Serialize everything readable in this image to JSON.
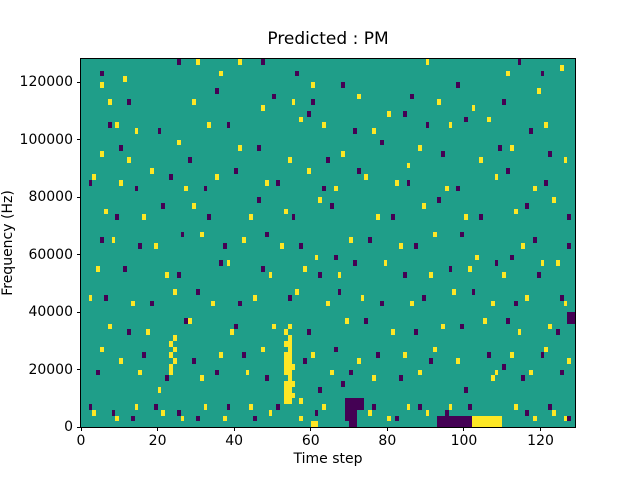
{
  "chart_data": {
    "type": "heatmap",
    "title": "Predicted : PM",
    "xlabel": "Time step",
    "ylabel": "Frequency (Hz)",
    "xlim": [
      0,
      129
    ],
    "ylim": [
      0,
      128000
    ],
    "x_ticks": [
      0,
      20,
      40,
      60,
      80,
      100,
      120
    ],
    "y_ticks": [
      0,
      20000,
      40000,
      60000,
      80000,
      100000,
      120000
    ],
    "cell_size": {
      "t": 1,
      "f": 2000
    },
    "grid": "off",
    "legend": "none",
    "colors": {
      "background": "#1f9e89",
      "high": "#fde725",
      "low": "#440154",
      "spine": "#000000",
      "figure_background": "#ffffff"
    },
    "high_cells": [
      [
        30,
        126000
      ],
      [
        41,
        126000
      ],
      [
        90,
        126000
      ],
      [
        125,
        124000
      ],
      [
        36,
        122000
      ],
      [
        111,
        122000
      ],
      [
        5,
        118000
      ],
      [
        60,
        118000
      ],
      [
        11,
        120000
      ],
      [
        72,
        114000
      ],
      [
        29,
        112000
      ],
      [
        55,
        112000
      ],
      [
        93,
        112000
      ],
      [
        119,
        116000
      ],
      [
        102,
        110000
      ],
      [
        47,
        110000
      ],
      [
        7,
        112000
      ],
      [
        9,
        104000
      ],
      [
        14,
        102000
      ],
      [
        33,
        104000
      ],
      [
        57,
        106000
      ],
      [
        63,
        104000
      ],
      [
        76,
        102000
      ],
      [
        96,
        104000
      ],
      [
        106,
        106000
      ],
      [
        121,
        104000
      ],
      [
        80,
        108000
      ],
      [
        25,
        98000
      ],
      [
        5,
        94000
      ],
      [
        12,
        92000
      ],
      [
        41,
        96000
      ],
      [
        54,
        92000
      ],
      [
        68,
        94000
      ],
      [
        88,
        96000
      ],
      [
        104,
        92000
      ],
      [
        112,
        96000
      ],
      [
        126,
        92000
      ],
      [
        85,
        90000
      ],
      [
        3,
        86000
      ],
      [
        10,
        84000
      ],
      [
        18,
        88000
      ],
      [
        27,
        82000
      ],
      [
        35,
        86000
      ],
      [
        48,
        84000
      ],
      [
        59,
        88000
      ],
      [
        66,
        82000
      ],
      [
        74,
        86000
      ],
      [
        82,
        84000
      ],
      [
        95,
        82000
      ],
      [
        108,
        86000
      ],
      [
        118,
        82000
      ],
      [
        6,
        74000
      ],
      [
        16,
        72000
      ],
      [
        29,
        76000
      ],
      [
        44,
        72000
      ],
      [
        53,
        74000
      ],
      [
        62,
        78000
      ],
      [
        77,
        72000
      ],
      [
        89,
        76000
      ],
      [
        100,
        72000
      ],
      [
        113,
        74000
      ],
      [
        123,
        78000
      ],
      [
        8,
        64000
      ],
      [
        19,
        62000
      ],
      [
        31,
        66000
      ],
      [
        42,
        64000
      ],
      [
        52,
        62000
      ],
      [
        61,
        58000
      ],
      [
        70,
        64000
      ],
      [
        83,
        62000
      ],
      [
        92,
        66000
      ],
      [
        103,
        58000
      ],
      [
        115,
        62000
      ],
      [
        124,
        56000
      ],
      [
        4,
        54000
      ],
      [
        22,
        52000
      ],
      [
        38,
        56000
      ],
      [
        49,
        52000
      ],
      [
        58,
        54000
      ],
      [
        67,
        52000
      ],
      [
        79,
        56000
      ],
      [
        91,
        52000
      ],
      [
        101,
        54000
      ],
      [
        110,
        52000
      ],
      [
        120,
        56000
      ],
      [
        2,
        44000
      ],
      [
        13,
        42000
      ],
      [
        24,
        46000
      ],
      [
        34,
        42000
      ],
      [
        45,
        44000
      ],
      [
        56,
        46000
      ],
      [
        64,
        42000
      ],
      [
        73,
        44000
      ],
      [
        86,
        42000
      ],
      [
        97,
        46000
      ],
      [
        107,
        42000
      ],
      [
        116,
        44000
      ],
      [
        126,
        42000
      ],
      [
        7,
        34000
      ],
      [
        17,
        32000
      ],
      [
        28,
        36000
      ],
      [
        39,
        32000
      ],
      [
        50,
        34000
      ],
      [
        69,
        36000
      ],
      [
        81,
        32000
      ],
      [
        94,
        34000
      ],
      [
        105,
        36000
      ],
      [
        114,
        32000
      ],
      [
        122,
        34000
      ],
      [
        23,
        18000
      ],
      [
        23,
        20000
      ],
      [
        24,
        22000
      ],
      [
        23,
        24000
      ],
      [
        24,
        26000
      ],
      [
        23,
        28000
      ],
      [
        24,
        30000
      ],
      [
        53,
        8000,
        2,
        1
      ],
      [
        53,
        10000,
        3,
        1
      ],
      [
        53,
        12000,
        2,
        1
      ],
      [
        53,
        14000,
        3,
        1
      ],
      [
        54,
        16000
      ],
      [
        53,
        18000,
        2,
        1
      ],
      [
        53,
        20000,
        3,
        1
      ],
      [
        53,
        22000,
        2,
        1
      ],
      [
        53,
        24000,
        2,
        1
      ],
      [
        54,
        26000
      ],
      [
        53,
        28000,
        2,
        1
      ],
      [
        54,
        30000
      ],
      [
        53,
        32000
      ],
      [
        54,
        34000
      ],
      [
        5,
        26000
      ],
      [
        10,
        22000
      ],
      [
        15,
        18000
      ],
      [
        20,
        12000
      ],
      [
        31,
        16000
      ],
      [
        36,
        24000
      ],
      [
        43,
        18000
      ],
      [
        47,
        26000
      ],
      [
        60,
        24000
      ],
      [
        65,
        18000
      ],
      [
        72,
        22000
      ],
      [
        76,
        16000
      ],
      [
        84,
        24000
      ],
      [
        88,
        18000
      ],
      [
        92,
        26000
      ],
      [
        98,
        22000
      ],
      [
        107,
        16000
      ],
      [
        108,
        18000
      ],
      [
        112,
        24000
      ],
      [
        117,
        18000
      ],
      [
        121,
        26000
      ],
      [
        127,
        22000
      ],
      [
        3,
        4000
      ],
      [
        9,
        2000
      ],
      [
        14,
        6000
      ],
      [
        21,
        4000
      ],
      [
        26,
        2000
      ],
      [
        32,
        6000
      ],
      [
        37,
        2000
      ],
      [
        44,
        6000
      ],
      [
        49,
        4000
      ],
      [
        57,
        2000
      ],
      [
        57,
        8000
      ],
      [
        60,
        0,
        2,
        1
      ],
      [
        63,
        6000
      ],
      [
        75,
        4000
      ],
      [
        80,
        2000
      ],
      [
        85,
        6000
      ],
      [
        90,
        4000
      ],
      [
        96,
        6000
      ],
      [
        113,
        6000
      ],
      [
        118,
        2000
      ],
      [
        123,
        4000
      ],
      [
        126,
        2000
      ],
      [
        102,
        0,
        8,
        2
      ]
    ],
    "low_cells": [
      [
        25,
        126000
      ],
      [
        47,
        126000
      ],
      [
        114,
        126000
      ],
      [
        5,
        122000
      ],
      [
        56,
        122000
      ],
      [
        120,
        122000
      ],
      [
        12,
        112000
      ],
      [
        60,
        112000
      ],
      [
        86,
        114000
      ],
      [
        98,
        118000
      ],
      [
        110,
        112000
      ],
      [
        35,
        116000
      ],
      [
        68,
        118000
      ],
      [
        50,
        114000
      ],
      [
        7,
        104000
      ],
      [
        20,
        102000
      ],
      [
        38,
        104000
      ],
      [
        59,
        108000
      ],
      [
        71,
        102000
      ],
      [
        90,
        104000
      ],
      [
        100,
        106000
      ],
      [
        117,
        102000
      ],
      [
        84,
        108000
      ],
      [
        10,
        96000
      ],
      [
        28,
        92000
      ],
      [
        46,
        96000
      ],
      [
        64,
        92000
      ],
      [
        78,
        98000
      ],
      [
        94,
        94000
      ],
      [
        109,
        96000
      ],
      [
        122,
        94000
      ],
      [
        2,
        84000
      ],
      [
        14,
        82000
      ],
      [
        23,
        86000
      ],
      [
        32,
        82000
      ],
      [
        40,
        88000
      ],
      [
        51,
        84000
      ],
      [
        63,
        82000
      ],
      [
        72,
        88000
      ],
      [
        85,
        84000
      ],
      [
        98,
        82000
      ],
      [
        111,
        88000
      ],
      [
        121,
        84000
      ],
      [
        9,
        72000
      ],
      [
        21,
        76000
      ],
      [
        33,
        72000
      ],
      [
        46,
        78000
      ],
      [
        55,
        72000
      ],
      [
        65,
        76000
      ],
      [
        81,
        72000
      ],
      [
        93,
        78000
      ],
      [
        104,
        72000
      ],
      [
        116,
        76000
      ],
      [
        127,
        72000
      ],
      [
        5,
        64000
      ],
      [
        15,
        62000
      ],
      [
        26,
        66000
      ],
      [
        37,
        62000
      ],
      [
        48,
        66000
      ],
      [
        57,
        62000
      ],
      [
        66,
        58000
      ],
      [
        75,
        64000
      ],
      [
        87,
        62000
      ],
      [
        99,
        66000
      ],
      [
        112,
        58000
      ],
      [
        118,
        64000
      ],
      [
        127,
        62000
      ],
      [
        11,
        54000
      ],
      [
        25,
        52000
      ],
      [
        36,
        56000
      ],
      [
        47,
        54000
      ],
      [
        62,
        52000
      ],
      [
        71,
        56000
      ],
      [
        84,
        52000
      ],
      [
        96,
        54000
      ],
      [
        108,
        56000
      ],
      [
        119,
        52000
      ],
      [
        6,
        44000
      ],
      [
        18,
        42000
      ],
      [
        30,
        46000
      ],
      [
        41,
        42000
      ],
      [
        54,
        44000
      ],
      [
        67,
        46000
      ],
      [
        78,
        42000
      ],
      [
        89,
        44000
      ],
      [
        102,
        46000
      ],
      [
        113,
        42000
      ],
      [
        125,
        44000
      ],
      [
        127,
        36000,
        2,
        2
      ],
      [
        12,
        32000
      ],
      [
        27,
        36000
      ],
      [
        40,
        34000
      ],
      [
        59,
        32000
      ],
      [
        74,
        36000
      ],
      [
        87,
        32000
      ],
      [
        99,
        34000
      ],
      [
        111,
        36000
      ],
      [
        124,
        32000
      ],
      [
        4,
        18000
      ],
      [
        16,
        24000
      ],
      [
        22,
        16000
      ],
      [
        29,
        22000
      ],
      [
        35,
        18000
      ],
      [
        42,
        24000
      ],
      [
        48,
        16000
      ],
      [
        58,
        22000
      ],
      [
        66,
        26000
      ],
      [
        70,
        18000
      ],
      [
        77,
        24000
      ],
      [
        83,
        16000
      ],
      [
        91,
        22000
      ],
      [
        100,
        12000
      ],
      [
        106,
        24000
      ],
      [
        110,
        20000
      ],
      [
        115,
        16000
      ],
      [
        120,
        24000
      ],
      [
        125,
        18000
      ],
      [
        62,
        12000
      ],
      [
        68,
        14000
      ],
      [
        69,
        2000,
        3,
        4
      ],
      [
        70,
        0,
        2,
        1
      ],
      [
        72,
        6000,
        2,
        2
      ],
      [
        2,
        6000
      ],
      [
        8,
        4000
      ],
      [
        13,
        2000
      ],
      [
        19,
        6000
      ],
      [
        25,
        4000
      ],
      [
        30,
        2000
      ],
      [
        38,
        6000
      ],
      [
        45,
        2000
      ],
      [
        51,
        6000
      ],
      [
        61,
        4000
      ],
      [
        76,
        6000
      ],
      [
        82,
        2000
      ],
      [
        88,
        6000
      ],
      [
        95,
        4000
      ],
      [
        101,
        6000
      ],
      [
        116,
        4000
      ],
      [
        122,
        6000
      ],
      [
        127,
        2000
      ],
      [
        93,
        0,
        9,
        2
      ]
    ]
  }
}
